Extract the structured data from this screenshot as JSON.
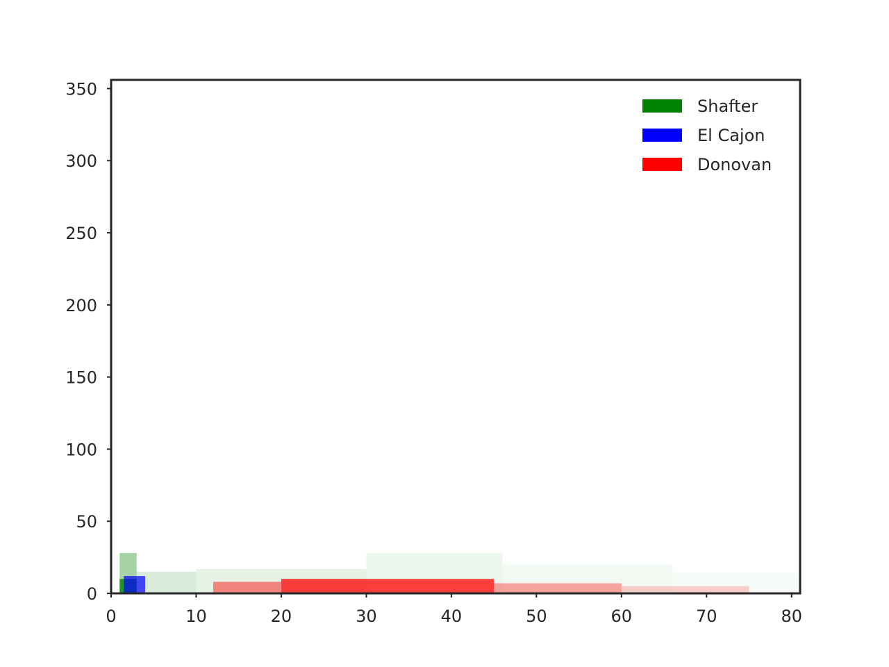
{
  "chart_data": {
    "type": "heatmap",
    "title": "",
    "xlabel": "",
    "ylabel": "",
    "xlim": [
      0,
      81
    ],
    "ylim": [
      0,
      356
    ],
    "xticks": [
      0,
      10,
      20,
      30,
      40,
      50,
      60,
      70,
      80
    ],
    "yticks": [
      0,
      50,
      100,
      150,
      200,
      250,
      300,
      350
    ],
    "grid": false,
    "legend_position": "top-right",
    "series": [
      {
        "name": "Shafter",
        "color": "#008000",
        "density_bands": [
          {
            "x": [
              1,
              3
            ],
            "y": [
              0,
              10
            ],
            "opacity": 0.85
          },
          {
            "x": [
              1,
              3
            ],
            "y": [
              10,
              28
            ],
            "opacity": 0.35
          },
          {
            "x": [
              3,
              10
            ],
            "y": [
              0,
              15
            ],
            "opacity": 0.15
          },
          {
            "x": [
              10,
              30
            ],
            "y": [
              0,
              17
            ],
            "opacity": 0.1
          },
          {
            "x": [
              30,
              46
            ],
            "y": [
              0,
              28
            ],
            "opacity": 0.07
          },
          {
            "x": [
              46,
              66
            ],
            "y": [
              0,
              20
            ],
            "opacity": 0.05
          },
          {
            "x": [
              66,
              81
            ],
            "y": [
              0,
              14
            ],
            "opacity": 0.03
          }
        ]
      },
      {
        "name": "El Cajon",
        "color": "#0000ff",
        "density_bands": [
          {
            "x": [
              1.5,
              4
            ],
            "y": [
              0,
              12
            ],
            "opacity": 0.7
          }
        ]
      },
      {
        "name": "Donovan",
        "color": "#ff0000",
        "density_bands": [
          {
            "x": [
              20,
              45
            ],
            "y": [
              0,
              10
            ],
            "opacity": 0.75
          },
          {
            "x": [
              12,
              20
            ],
            "y": [
              0,
              8
            ],
            "opacity": 0.45
          },
          {
            "x": [
              45,
              60
            ],
            "y": [
              0,
              7
            ],
            "opacity": 0.35
          },
          {
            "x": [
              60,
              75
            ],
            "y": [
              0,
              5
            ],
            "opacity": 0.18
          }
        ]
      }
    ]
  }
}
